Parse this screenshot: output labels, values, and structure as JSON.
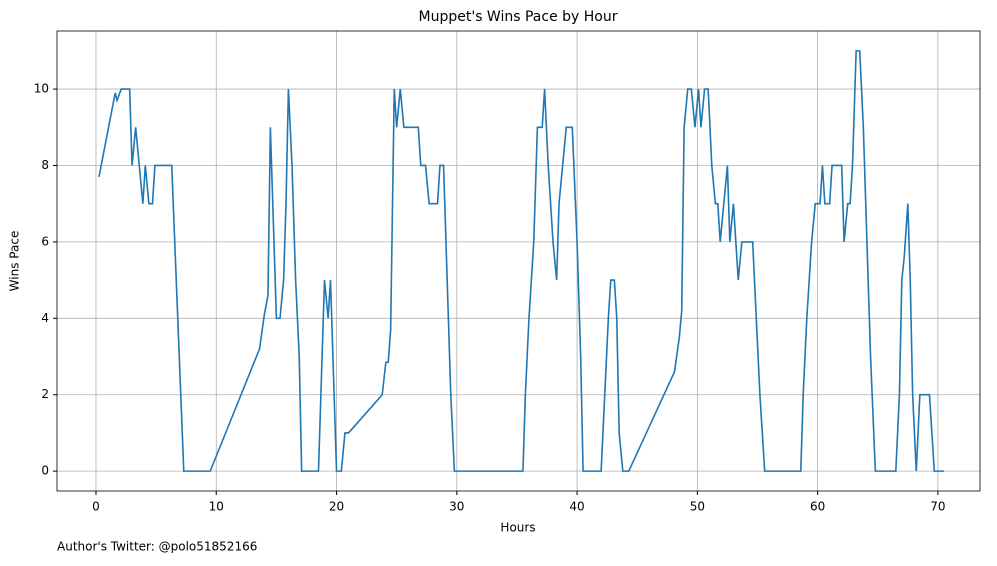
{
  "chart_data": {
    "type": "line",
    "title": "Muppet's Wins Pace by Hour",
    "x_label": "Hours",
    "y_label": "Wins Pace",
    "footnote": "Author's Twitter: @polo51852166",
    "x": [
      0.25,
      1.6,
      1.75,
      2.1,
      2.8,
      3,
      3.3,
      3.6,
      3.9,
      4.1,
      4.4,
      4.7,
      4.9,
      6.3,
      7.3,
      9.5,
      13.6,
      14,
      14.3,
      14.5,
      14.7,
      15,
      15.3,
      15.6,
      15.8,
      16,
      16.3,
      16.6,
      16.9,
      17.1,
      18.5,
      18.8,
      19,
      19.3,
      19.5,
      19.8,
      20,
      20.4,
      20.7,
      21,
      23.8,
      24.1,
      24.3,
      24.5,
      24.8,
      25,
      25.3,
      25.6,
      26.8,
      27,
      27.4,
      27.7,
      28.4,
      28.6,
      28.9,
      29.2,
      29.5,
      29.8,
      35.5,
      35.7,
      36,
      36.4,
      36.7,
      37.1,
      37.3,
      37.6,
      38,
      38.3,
      38.5,
      38.8,
      39.1,
      39.6,
      40,
      40.3,
      40.5,
      42,
      42.3,
      42.6,
      42.8,
      43.1,
      43.3,
      43.5,
      43.8,
      44.3,
      48.1,
      48.5,
      48.7,
      48.9,
      49.2,
      49.5,
      49.8,
      50.1,
      50.3,
      50.6,
      50.9,
      51.2,
      51.5,
      51.7,
      51.9,
      52.2,
      52.5,
      52.7,
      53,
      53.2,
      53.4,
      53.7,
      54.6,
      54.9,
      55.2,
      55.6,
      58.6,
      58.8,
      59.1,
      59.5,
      59.8,
      60.2,
      60.4,
      60.6,
      61,
      61.2,
      62,
      62.2,
      62.5,
      62.7,
      62.9,
      63.2,
      63.5,
      63.8,
      64.1,
      64.4,
      64.8,
      66.5,
      66.8,
      67,
      67.2,
      67.5,
      67.7,
      67.9,
      68.2,
      68.5,
      69.3,
      69.7,
      70.5
    ],
    "series": [
      {
        "name": "Wins Pace",
        "color": "#1f77b4",
        "values": [
          7.7,
          9.9,
          9.7,
          10,
          10,
          8,
          9,
          8,
          7,
          8,
          7,
          7,
          8,
          8,
          0,
          0,
          3.2,
          4.1,
          4.6,
          9,
          7,
          4,
          4,
          5,
          7,
          10,
          8,
          5,
          3,
          0,
          0,
          3,
          5,
          4,
          5,
          2,
          0,
          0,
          1,
          1,
          2,
          2.85,
          2.85,
          3.7,
          10,
          9,
          10,
          9,
          9,
          8,
          8,
          7,
          7,
          8,
          8,
          5,
          2,
          0,
          0,
          2,
          4,
          6,
          9,
          9,
          10,
          8,
          6,
          5,
          7,
          8,
          9,
          9,
          6,
          3,
          0,
          0,
          2,
          4,
          5,
          5,
          4,
          1,
          0,
          0,
          2.6,
          3.5,
          4.2,
          9,
          10,
          10,
          9,
          10,
          9,
          10,
          10,
          8,
          7,
          7,
          6,
          7,
          8,
          6,
          7,
          6,
          5,
          6,
          6,
          4,
          2,
          0,
          0,
          2,
          4,
          6,
          7,
          7,
          8,
          7,
          7,
          8,
          8,
          6,
          7,
          7,
          8,
          11,
          11,
          9,
          6,
          3,
          0,
          0,
          2,
          5,
          5.6,
          7,
          5,
          2,
          0,
          2,
          2,
          0,
          0
        ]
      }
    ],
    "xlim": [
      -3.24,
      73.5
    ],
    "ylim": [
      -0.52,
      11.52
    ],
    "xticks": [
      0,
      10,
      20,
      30,
      40,
      50,
      60,
      70
    ],
    "yticks": [
      0,
      2,
      4,
      6,
      8,
      10
    ],
    "grid": true
  }
}
